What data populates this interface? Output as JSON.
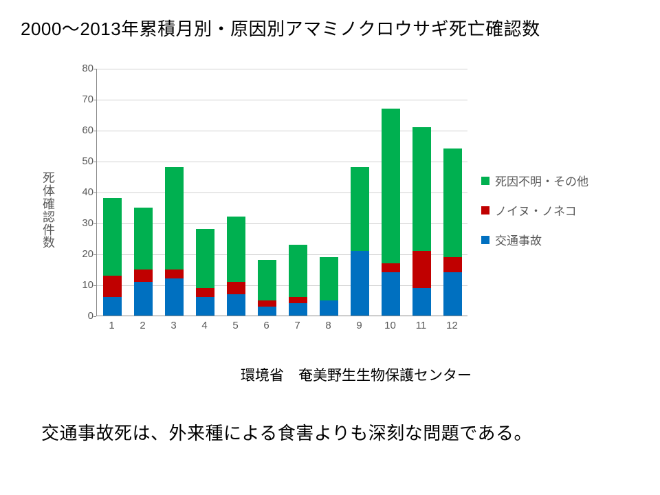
{
  "title": "2000～2013年累積月別・原因別アマミノクロウサギ死亡確認数",
  "source": "環境省　奄美野生生物保護センター",
  "caption": "交通事故死は、外来種による食害よりも深刻な問題である。",
  "chart": {
    "type": "stacked-bar",
    "ylabel": "死体確認件数",
    "xlabel": "",
    "ylim": [
      0,
      80
    ],
    "ytick_step": 10,
    "bar_width": 0.62,
    "background_color": "#ffffff",
    "grid_color": "#d0d0d0",
    "axis_color": "#888888",
    "tick_color": "#595959",
    "label_fontsize": 18,
    "tick_fontsize": 15,
    "categories": [
      "1",
      "2",
      "3",
      "4",
      "5",
      "6",
      "7",
      "8",
      "9",
      "10",
      "11",
      "12"
    ],
    "series": [
      {
        "name": "交通事故",
        "color": "#0070c0",
        "values": [
          6,
          11,
          12,
          6,
          7,
          3,
          4,
          5,
          21,
          14,
          9,
          14
        ]
      },
      {
        "name": "ノイヌ・ノネコ",
        "color": "#c00000",
        "values": [
          7,
          4,
          3,
          3,
          4,
          2,
          2,
          0,
          0,
          3,
          12,
          5
        ]
      },
      {
        "name": "死因不明・その他",
        "color": "#00b050",
        "values": [
          25,
          20,
          33,
          19,
          21,
          13,
          17,
          14,
          27,
          50,
          40,
          35
        ]
      }
    ],
    "legend_order": [
      "死因不明・その他",
      "ノイヌ・ノネコ",
      "交通事故"
    ],
    "legend_position": "right"
  }
}
